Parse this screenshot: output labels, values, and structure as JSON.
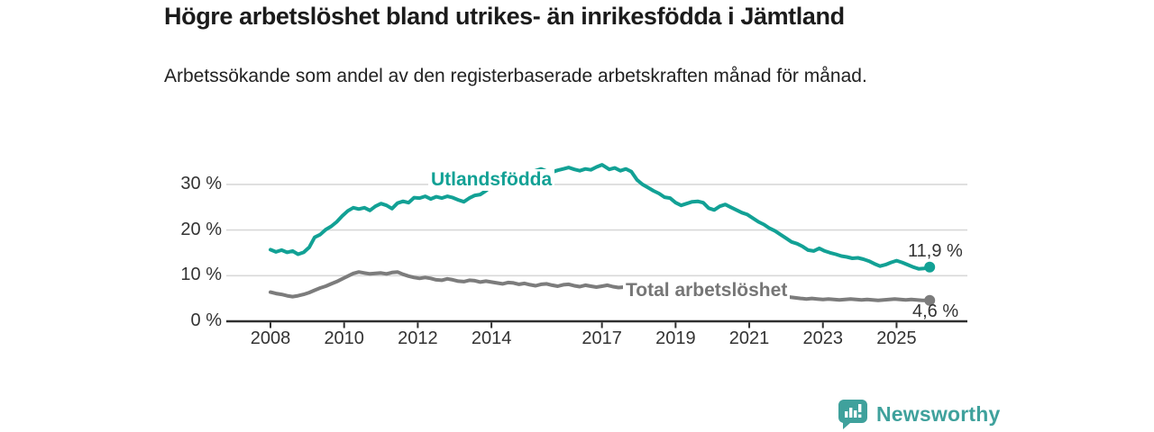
{
  "header": {
    "title": "Högre arbetslöshet bland utrikes- än inrikesfödda i Jämtland",
    "subtitle": "Arbetssökande som andel av den registerbaserade arbetskraften månad för månad."
  },
  "footer": {
    "brand": "Newsworthy",
    "brand_color": "#3fa19c",
    "logo_icon": "speech-bubble-bar-chart"
  },
  "colors": {
    "foreign_born_line": "#12a195",
    "total_line": "#7c7c7c",
    "total_label_text": "#767676",
    "gridline": "#d8d8d8",
    "axis": "#2f2f2f",
    "text": "#333333"
  },
  "chart_data": {
    "type": "line",
    "title": "Högre arbetslöshet bland utrikes- än inrikesfödda i Jämtland",
    "subtitle": "Arbetssökande som andel av den registerbaserade arbetskraften månad för månad.",
    "unit": "%",
    "grid": true,
    "legend_position": "inline-labels",
    "x_axis": {
      "ticks": [
        2008,
        2010,
        2012,
        2014,
        2017,
        2019,
        2021,
        2023,
        2025
      ],
      "range": [
        2008,
        2026
      ]
    },
    "y_axis": {
      "range": [
        0,
        36
      ],
      "ticks": [
        {
          "v": 0,
          "label": "0 %"
        },
        {
          "v": 10,
          "label": "10 %"
        },
        {
          "v": 20,
          "label": "20 %"
        },
        {
          "v": 30,
          "label": "30 %"
        }
      ]
    },
    "series": [
      {
        "name": "Utlandsfödda",
        "color": "#12a195",
        "end_label": "11,9 %",
        "end_value": 11.9,
        "points": [
          [
            2008.0,
            15.7
          ],
          [
            2008.15,
            15.2
          ],
          [
            2008.3,
            15.6
          ],
          [
            2008.45,
            15.1
          ],
          [
            2008.6,
            15.4
          ],
          [
            2008.75,
            14.7
          ],
          [
            2008.9,
            15.1
          ],
          [
            2009.05,
            16.2
          ],
          [
            2009.2,
            18.4
          ],
          [
            2009.35,
            19.0
          ],
          [
            2009.5,
            20.1
          ],
          [
            2009.65,
            20.8
          ],
          [
            2009.8,
            21.8
          ],
          [
            2009.95,
            23.1
          ],
          [
            2010.1,
            24.2
          ],
          [
            2010.25,
            24.9
          ],
          [
            2010.4,
            24.6
          ],
          [
            2010.55,
            24.9
          ],
          [
            2010.7,
            24.3
          ],
          [
            2010.85,
            25.2
          ],
          [
            2011.0,
            25.8
          ],
          [
            2011.15,
            25.4
          ],
          [
            2011.3,
            24.7
          ],
          [
            2011.45,
            25.9
          ],
          [
            2011.6,
            26.3
          ],
          [
            2011.75,
            26.0
          ],
          [
            2011.9,
            27.1
          ],
          [
            2012.05,
            27.0
          ],
          [
            2012.2,
            27.4
          ],
          [
            2012.35,
            26.8
          ],
          [
            2012.5,
            27.3
          ],
          [
            2012.65,
            27.0
          ],
          [
            2012.8,
            27.4
          ],
          [
            2012.95,
            27.1
          ],
          [
            2013.1,
            26.6
          ],
          [
            2013.25,
            26.2
          ],
          [
            2013.4,
            27.0
          ],
          [
            2013.55,
            27.6
          ],
          [
            2013.7,
            27.8
          ],
          [
            2013.85,
            28.6
          ],
          [
            2014.0,
            29.6
          ],
          [
            2014.15,
            30.6
          ],
          [
            2014.3,
            31.4
          ],
          [
            2014.45,
            32.0
          ],
          [
            2014.6,
            32.6
          ],
          [
            2014.75,
            32.2
          ],
          [
            2014.9,
            32.0
          ],
          [
            2015.05,
            32.6
          ],
          [
            2015.2,
            33.0
          ],
          [
            2015.35,
            33.4
          ],
          [
            2015.5,
            32.9
          ],
          [
            2015.65,
            32.7
          ],
          [
            2015.8,
            33.1
          ],
          [
            2015.95,
            33.4
          ],
          [
            2016.1,
            33.7
          ],
          [
            2016.25,
            33.3
          ],
          [
            2016.4,
            33.0
          ],
          [
            2016.55,
            33.4
          ],
          [
            2016.7,
            33.2
          ],
          [
            2016.85,
            33.8
          ],
          [
            2017.0,
            34.3
          ],
          [
            2017.1,
            33.8
          ],
          [
            2017.2,
            33.3
          ],
          [
            2017.35,
            33.6
          ],
          [
            2017.5,
            33.0
          ],
          [
            2017.65,
            33.4
          ],
          [
            2017.8,
            32.8
          ],
          [
            2017.95,
            31.0
          ],
          [
            2018.1,
            30.0
          ],
          [
            2018.25,
            29.3
          ],
          [
            2018.4,
            28.6
          ],
          [
            2018.55,
            28.0
          ],
          [
            2018.7,
            27.2
          ],
          [
            2018.85,
            27.0
          ],
          [
            2019.0,
            26.0
          ],
          [
            2019.15,
            25.4
          ],
          [
            2019.3,
            25.8
          ],
          [
            2019.45,
            26.2
          ],
          [
            2019.6,
            26.3
          ],
          [
            2019.75,
            26.0
          ],
          [
            2019.9,
            24.8
          ],
          [
            2020.05,
            24.4
          ],
          [
            2020.2,
            25.2
          ],
          [
            2020.35,
            25.6
          ],
          [
            2020.5,
            25.0
          ],
          [
            2020.65,
            24.4
          ],
          [
            2020.8,
            23.8
          ],
          [
            2020.95,
            23.4
          ],
          [
            2021.1,
            22.6
          ],
          [
            2021.25,
            21.8
          ],
          [
            2021.4,
            21.2
          ],
          [
            2021.55,
            20.4
          ],
          [
            2021.7,
            19.8
          ],
          [
            2021.85,
            19.0
          ],
          [
            2022.0,
            18.2
          ],
          [
            2022.15,
            17.4
          ],
          [
            2022.3,
            17.0
          ],
          [
            2022.45,
            16.4
          ],
          [
            2022.6,
            15.6
          ],
          [
            2022.75,
            15.4
          ],
          [
            2022.9,
            16.0
          ],
          [
            2023.05,
            15.4
          ],
          [
            2023.2,
            15.0
          ],
          [
            2023.35,
            14.7
          ],
          [
            2023.5,
            14.3
          ],
          [
            2023.65,
            14.1
          ],
          [
            2023.8,
            13.8
          ],
          [
            2023.95,
            13.9
          ],
          [
            2024.1,
            13.6
          ],
          [
            2024.25,
            13.2
          ],
          [
            2024.4,
            12.6
          ],
          [
            2024.55,
            12.1
          ],
          [
            2024.7,
            12.4
          ],
          [
            2024.85,
            12.9
          ],
          [
            2025.0,
            13.3
          ],
          [
            2025.15,
            12.9
          ],
          [
            2025.3,
            12.4
          ],
          [
            2025.45,
            11.9
          ],
          [
            2025.6,
            11.5
          ],
          [
            2025.75,
            11.6
          ],
          [
            2025.9,
            11.9
          ]
        ]
      },
      {
        "name": "Total arbetslöshet",
        "color": "#7c7c7c",
        "end_label": "4,6 %",
        "end_value": 4.6,
        "points": [
          [
            2008.0,
            6.4
          ],
          [
            2008.15,
            6.1
          ],
          [
            2008.3,
            5.9
          ],
          [
            2008.45,
            5.6
          ],
          [
            2008.6,
            5.4
          ],
          [
            2008.75,
            5.6
          ],
          [
            2008.9,
            5.9
          ],
          [
            2009.05,
            6.3
          ],
          [
            2009.2,
            6.8
          ],
          [
            2009.35,
            7.3
          ],
          [
            2009.5,
            7.7
          ],
          [
            2009.65,
            8.2
          ],
          [
            2009.8,
            8.7
          ],
          [
            2009.95,
            9.3
          ],
          [
            2010.1,
            9.9
          ],
          [
            2010.25,
            10.5
          ],
          [
            2010.4,
            10.8
          ],
          [
            2010.55,
            10.6
          ],
          [
            2010.7,
            10.4
          ],
          [
            2010.85,
            10.5
          ],
          [
            2011.0,
            10.6
          ],
          [
            2011.15,
            10.4
          ],
          [
            2011.3,
            10.7
          ],
          [
            2011.45,
            10.8
          ],
          [
            2011.6,
            10.3
          ],
          [
            2011.75,
            9.9
          ],
          [
            2011.9,
            9.6
          ],
          [
            2012.05,
            9.4
          ],
          [
            2012.2,
            9.6
          ],
          [
            2012.35,
            9.4
          ],
          [
            2012.5,
            9.1
          ],
          [
            2012.65,
            9.0
          ],
          [
            2012.8,
            9.3
          ],
          [
            2012.95,
            9.1
          ],
          [
            2013.1,
            8.8
          ],
          [
            2013.25,
            8.7
          ],
          [
            2013.4,
            9.0
          ],
          [
            2013.55,
            8.9
          ],
          [
            2013.7,
            8.6
          ],
          [
            2013.85,
            8.8
          ],
          [
            2014.0,
            8.6
          ],
          [
            2014.15,
            8.4
          ],
          [
            2014.3,
            8.2
          ],
          [
            2014.45,
            8.5
          ],
          [
            2014.6,
            8.4
          ],
          [
            2014.75,
            8.1
          ],
          [
            2014.9,
            8.3
          ],
          [
            2015.05,
            8.0
          ],
          [
            2015.2,
            7.8
          ],
          [
            2015.35,
            8.1
          ],
          [
            2015.5,
            8.2
          ],
          [
            2015.65,
            7.9
          ],
          [
            2015.8,
            7.7
          ],
          [
            2015.95,
            8.0
          ],
          [
            2016.1,
            8.1
          ],
          [
            2016.25,
            7.8
          ],
          [
            2016.4,
            7.6
          ],
          [
            2016.55,
            7.9
          ],
          [
            2016.7,
            7.7
          ],
          [
            2016.85,
            7.5
          ],
          [
            2017.0,
            7.7
          ],
          [
            2017.15,
            7.9
          ],
          [
            2017.3,
            7.6
          ],
          [
            2017.45,
            7.4
          ],
          [
            2017.6,
            7.5
          ],
          [
            2017.8,
            7.3
          ],
          [
            2018.0,
            7.1
          ],
          [
            2018.25,
            6.9
          ],
          [
            2018.5,
            6.8
          ],
          [
            2018.75,
            6.6
          ],
          [
            2019.0,
            6.5
          ],
          [
            2019.25,
            6.3
          ],
          [
            2019.5,
            6.4
          ],
          [
            2019.75,
            6.3
          ],
          [
            2020.0,
            6.6
          ],
          [
            2020.25,
            7.1
          ],
          [
            2020.5,
            7.3
          ],
          [
            2020.75,
            7.0
          ],
          [
            2021.0,
            6.8
          ],
          [
            2021.25,
            6.5
          ],
          [
            2021.5,
            6.1
          ],
          [
            2021.75,
            5.7
          ],
          [
            2022.0,
            5.4
          ],
          [
            2022.2,
            5.2
          ],
          [
            2022.4,
            5.0
          ],
          [
            2022.55,
            4.9
          ],
          [
            2022.7,
            5.0
          ],
          [
            2022.85,
            4.9
          ],
          [
            2023.0,
            4.8
          ],
          [
            2023.15,
            4.9
          ],
          [
            2023.3,
            4.8
          ],
          [
            2023.45,
            4.7
          ],
          [
            2023.6,
            4.8
          ],
          [
            2023.75,
            4.9
          ],
          [
            2023.9,
            4.8
          ],
          [
            2024.05,
            4.7
          ],
          [
            2024.2,
            4.8
          ],
          [
            2024.35,
            4.7
          ],
          [
            2024.5,
            4.6
          ],
          [
            2024.65,
            4.7
          ],
          [
            2024.8,
            4.8
          ],
          [
            2024.95,
            4.9
          ],
          [
            2025.1,
            4.8
          ],
          [
            2025.25,
            4.7
          ],
          [
            2025.4,
            4.8
          ],
          [
            2025.55,
            4.7
          ],
          [
            2025.7,
            4.6
          ],
          [
            2025.9,
            4.6
          ]
        ]
      }
    ]
  }
}
